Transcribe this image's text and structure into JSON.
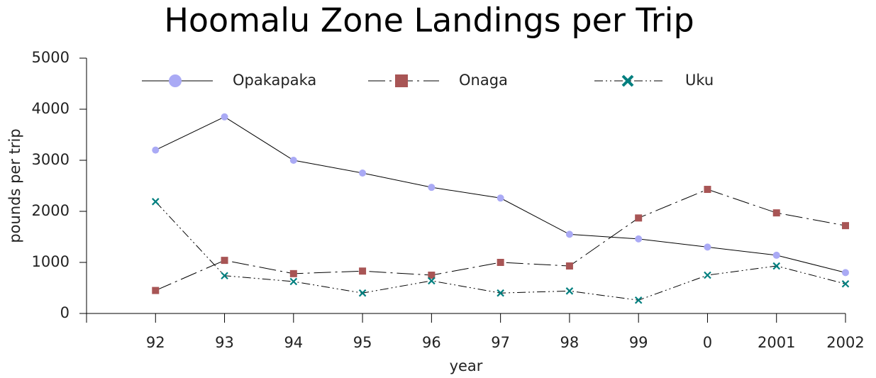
{
  "chart_data": {
    "type": "line",
    "title": "Hoomalu Zone Landings per Trip",
    "x_label": "year",
    "y_label": "pounds per trip",
    "categories": [
      null,
      "92",
      "93",
      "94",
      "95",
      "96",
      "97",
      "98",
      "99",
      "0",
      "2001",
      "2002"
    ],
    "series": [
      {
        "name": "Opakapaka",
        "color": "#aaaaf5",
        "marker": "circle",
        "dash": "solid",
        "values": [
          null,
          3200,
          3850,
          3000,
          2750,
          2470,
          2260,
          1550,
          1460,
          1300,
          1140,
          800
        ]
      },
      {
        "name": "Onaga",
        "color": "#a85555",
        "marker": "square",
        "dash": "dash-dot",
        "values": [
          null,
          450,
          1040,
          780,
          830,
          750,
          1000,
          930,
          1870,
          2430,
          1970,
          1720
        ]
      },
      {
        "name": "Uku",
        "color": "#007f7f",
        "marker": "x",
        "dash": "dash-dot-dot",
        "values": [
          null,
          2190,
          740,
          625,
          400,
          640,
          400,
          440,
          260,
          750,
          930,
          580
        ]
      }
    ],
    "ylim": [
      0,
      5000
    ],
    "yticks": [
      0,
      1000,
      2000,
      3000,
      4000,
      5000
    ],
    "grid": false,
    "legend": "top"
  }
}
